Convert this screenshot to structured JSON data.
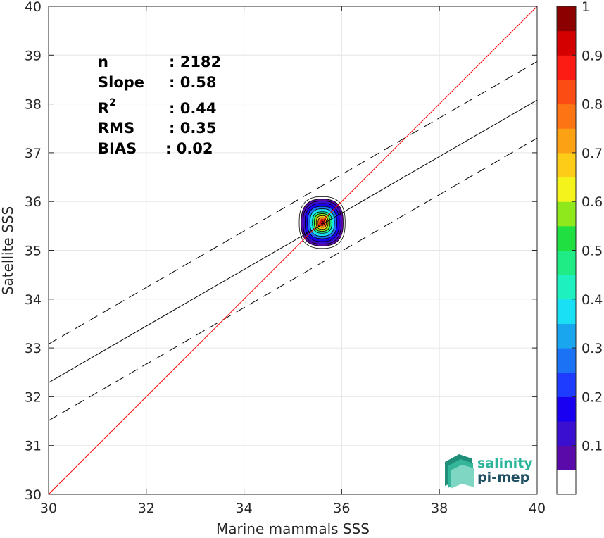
{
  "chart_data": {
    "type": "scatter",
    "plot_subtype": "density contour scatter with regression lines",
    "xlabel": "Marine mammals SSS",
    "ylabel": "Satellite SSS",
    "xlim": [
      30,
      40
    ],
    "ylim": [
      30,
      40
    ],
    "xticks": [
      "30",
      "32",
      "34",
      "36",
      "38",
      "40"
    ],
    "yticks": [
      "30",
      "31",
      "32",
      "33",
      "34",
      "35",
      "36",
      "37",
      "38",
      "39",
      "40"
    ],
    "grid": true,
    "stats": [
      {
        "label": "n",
        "value": ": 2182"
      },
      {
        "label": "Slope",
        "value": ": 0.58"
      },
      {
        "label": "R",
        "sup": "2",
        "value": ": 0.44"
      },
      {
        "label": "RMS",
        "value": ": 0.35"
      },
      {
        "label": "BIAS",
        "value": ": 0.02"
      }
    ],
    "lines": {
      "identity": {
        "x": [
          30,
          40
        ],
        "y": [
          30,
          40
        ],
        "color": "#ff0000"
      },
      "fit": {
        "x": [
          30,
          40
        ],
        "y": [
          32.29,
          38.08
        ],
        "color": "#000000",
        "style": "solid"
      },
      "fit_upper": {
        "x": [
          30,
          40
        ],
        "y": [
          33.08,
          38.87
        ],
        "color": "#000000",
        "style": "dashed"
      },
      "fit_lower": {
        "x": [
          30,
          40
        ],
        "y": [
          31.51,
          37.3
        ],
        "color": "#000000",
        "style": "dashed"
      }
    },
    "density_peak": {
      "x": 35.6,
      "y": 35.57
    },
    "density_levels": [
      {
        "level": 0.05,
        "rx": 0.47,
        "ry": 0.53
      },
      {
        "level": 0.1,
        "rx": 0.43,
        "ry": 0.48
      },
      {
        "level": 0.15,
        "rx": 0.39,
        "ry": 0.44
      },
      {
        "level": 0.2,
        "rx": 0.35,
        "ry": 0.39
      },
      {
        "level": 0.3,
        "rx": 0.3,
        "ry": 0.33
      },
      {
        "level": 0.4,
        "rx": 0.25,
        "ry": 0.28
      },
      {
        "level": 0.5,
        "rx": 0.2,
        "ry": 0.22
      },
      {
        "level": 0.6,
        "rx": 0.16,
        "ry": 0.18
      },
      {
        "level": 0.7,
        "rx": 0.12,
        "ry": 0.14
      },
      {
        "level": 0.8,
        "rx": 0.085,
        "ry": 0.1
      },
      {
        "level": 0.9,
        "rx": 0.05,
        "ry": 0.06
      },
      {
        "level": 1.0,
        "rx": 0.025,
        "ry": 0.03
      }
    ],
    "colorbar": {
      "range": [
        0,
        1
      ],
      "tick_labels": [
        "0.1",
        "0.2",
        "0.3",
        "0.4",
        "0.5",
        "0.6",
        "0.7",
        "0.8",
        "0.9",
        "1"
      ],
      "tick_values": [
        0.1,
        0.2,
        0.3,
        0.4,
        0.5,
        0.6,
        0.7,
        0.8,
        0.9,
        1.0
      ],
      "bins": [
        {
          "from": 0.0,
          "to": 0.05,
          "color": "#ffffff"
        },
        {
          "from": 0.05,
          "to": 0.1,
          "color": "#5a0aa8"
        },
        {
          "from": 0.1,
          "to": 0.15,
          "color": "#3a0fd0"
        },
        {
          "from": 0.15,
          "to": 0.2,
          "color": "#1a00f0"
        },
        {
          "from": 0.2,
          "to": 0.25,
          "color": "#1e3cff"
        },
        {
          "from": 0.25,
          "to": 0.3,
          "color": "#1b72f5"
        },
        {
          "from": 0.3,
          "to": 0.35,
          "color": "#1aa6ef"
        },
        {
          "from": 0.35,
          "to": 0.4,
          "color": "#1ae0f5"
        },
        {
          "from": 0.4,
          "to": 0.45,
          "color": "#1ff0c0"
        },
        {
          "from": 0.45,
          "to": 0.5,
          "color": "#1fec84"
        },
        {
          "from": 0.5,
          "to": 0.55,
          "color": "#1fe040"
        },
        {
          "from": 0.55,
          "to": 0.6,
          "color": "#8ee81c"
        },
        {
          "from": 0.6,
          "to": 0.65,
          "color": "#f4f41c"
        },
        {
          "from": 0.65,
          "to": 0.7,
          "color": "#fccc18"
        },
        {
          "from": 0.7,
          "to": 0.75,
          "color": "#fca014"
        },
        {
          "from": 0.75,
          "to": 0.8,
          "color": "#fc7414"
        },
        {
          "from": 0.8,
          "to": 0.85,
          "color": "#fc4c14"
        },
        {
          "from": 0.85,
          "to": 0.9,
          "color": "#fc1c14"
        },
        {
          "from": 0.9,
          "to": 0.95,
          "color": "#d40000"
        },
        {
          "from": 0.95,
          "to": 1.0,
          "color": "#8c0000"
        }
      ]
    }
  },
  "logo": {
    "line1": "salinity",
    "line2": "pi-mep",
    "color1": "#2bb59a",
    "color2": "#1f4f63"
  }
}
